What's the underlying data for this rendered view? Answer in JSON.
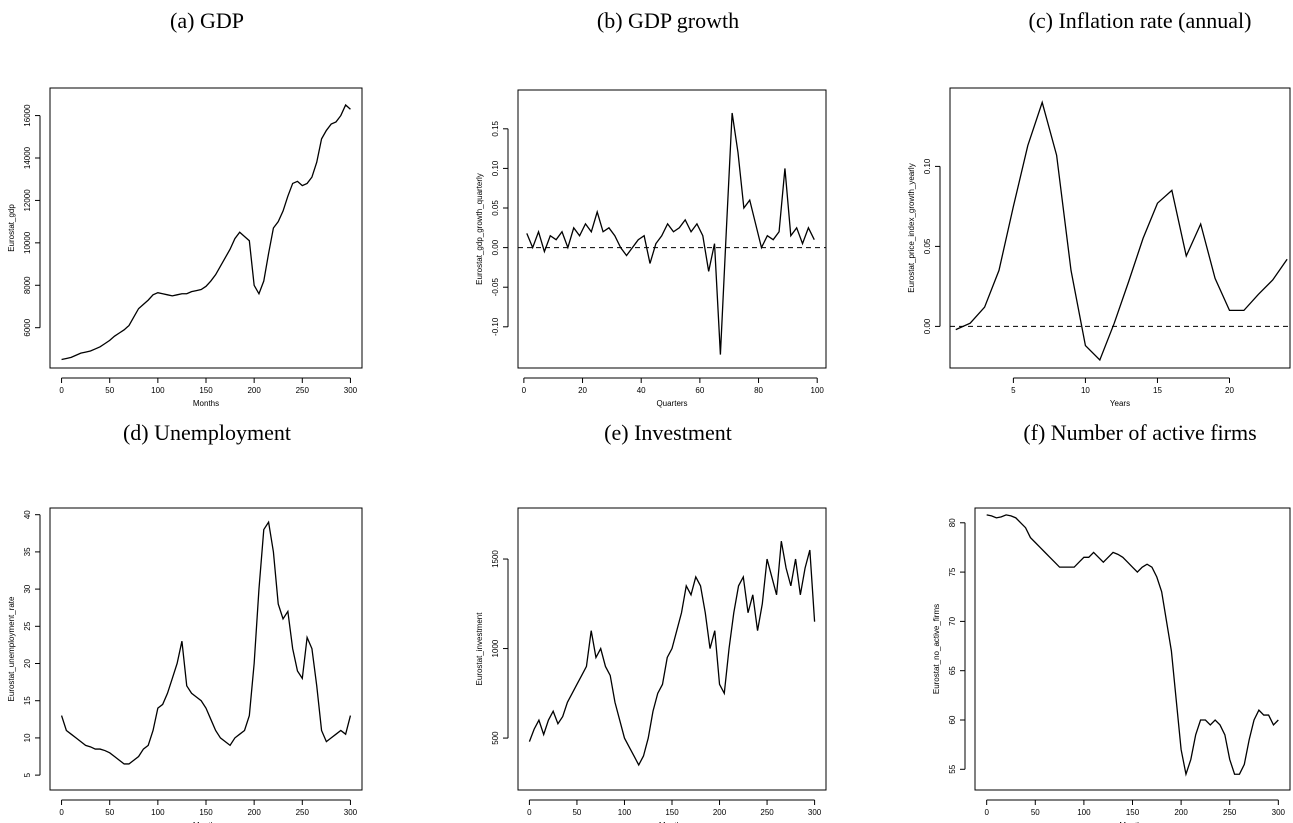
{
  "chart_data": [
    {
      "type": "line",
      "title": "(a) GDP",
      "xlabel": "Months",
      "ylabel": "Eurostat_gdp",
      "color": "#000000",
      "x": [
        0,
        5,
        10,
        15,
        20,
        25,
        30,
        35,
        40,
        45,
        50,
        55,
        60,
        65,
        70,
        75,
        80,
        85,
        90,
        95,
        100,
        105,
        110,
        115,
        120,
        125,
        130,
        135,
        140,
        145,
        150,
        155,
        160,
        165,
        170,
        175,
        180,
        185,
        190,
        195,
        200,
        205,
        210,
        215,
        220,
        225,
        230,
        235,
        240,
        245,
        250,
        255,
        260,
        265,
        270,
        275,
        280,
        285,
        290,
        295,
        300
      ],
      "values": [
        4500,
        4550,
        4600,
        4700,
        4800,
        4850,
        4900,
        5000,
        5100,
        5250,
        5400,
        5600,
        5750,
        5900,
        6100,
        6500,
        6900,
        7100,
        7300,
        7550,
        7650,
        7600,
        7550,
        7500,
        7550,
        7600,
        7600,
        7700,
        7750,
        7800,
        7950,
        8200,
        8500,
        8900,
        9300,
        9700,
        10200,
        10500,
        10300,
        10100,
        8000,
        7600,
        8200,
        9500,
        10700,
        11000,
        11500,
        12200,
        12800,
        12900,
        12700,
        12800,
        13100,
        13800,
        14900,
        15300,
        15600,
        15700,
        16000,
        16500,
        16300
      ],
      "xlim": [
        -12,
        312
      ],
      "ylim": [
        4100,
        17300
      ],
      "xticks": [
        0,
        50,
        100,
        150,
        200,
        250,
        300
      ],
      "yticks": [
        6000,
        8000,
        10000,
        12000,
        14000,
        16000
      ]
    },
    {
      "type": "line",
      "title": "(b) GDP growth",
      "xlabel": "Quarters",
      "ylabel": "Eurostat_gdp_growth_quarterly",
      "color": "#000000",
      "hline": 0,
      "x": [
        1,
        3,
        5,
        7,
        9,
        11,
        13,
        15,
        17,
        19,
        21,
        23,
        25,
        27,
        29,
        31,
        33,
        35,
        37,
        39,
        41,
        43,
        45,
        47,
        49,
        51,
        53,
        55,
        57,
        59,
        61,
        63,
        65,
        67,
        69,
        71,
        73,
        75,
        77,
        79,
        81,
        83,
        85,
        87,
        89,
        91,
        93,
        95,
        97,
        99
      ],
      "values": [
        0.018,
        0.0,
        0.02,
        -0.005,
        0.015,
        0.01,
        0.02,
        0.0,
        0.025,
        0.015,
        0.03,
        0.02,
        0.045,
        0.02,
        0.025,
        0.015,
        0.0,
        -0.01,
        0.0,
        0.01,
        0.015,
        -0.02,
        0.005,
        0.015,
        0.03,
        0.02,
        0.025,
        0.035,
        0.02,
        0.03,
        0.015,
        -0.03,
        0.005,
        -0.135,
        0.02,
        0.17,
        0.12,
        0.05,
        0.06,
        0.03,
        0.0,
        0.015,
        0.01,
        0.02,
        0.1,
        0.015,
        0.025,
        0.005,
        0.025,
        0.01
      ],
      "xlim": [
        -2,
        103
      ],
      "ylim": [
        -0.152,
        0.199
      ],
      "xticks": [
        0,
        20,
        40,
        60,
        80,
        100
      ],
      "yticks": [
        {
          "value": -0.1,
          "label": "-0.10"
        },
        -0.05,
        {
          "value": 0,
          "label": "0.00"
        },
        0.05,
        {
          "value": 0.1,
          "label": "0.10"
        },
        0.15
      ]
    },
    {
      "type": "line",
      "title": "(c) Inflation rate (annual)",
      "xlabel": "Years",
      "ylabel": "Eurostat_price_index_growth_yearly",
      "color": "#000000",
      "hline": 0,
      "x": [
        1,
        2,
        3,
        4,
        5,
        6,
        7,
        8,
        9,
        10,
        11,
        12,
        13,
        14,
        15,
        16,
        17,
        18,
        19,
        20,
        21,
        22,
        23,
        24
      ],
      "values": [
        -0.002,
        0.002,
        0.012,
        0.035,
        0.075,
        0.113,
        0.14,
        0.107,
        0.035,
        -0.012,
        -0.021,
        0.002,
        0.028,
        0.055,
        0.077,
        0.085,
        0.044,
        0.064,
        0.03,
        0.01,
        0.01,
        0.02,
        0.029,
        0.042
      ],
      "xlim": [
        0.6,
        24.2
      ],
      "ylim": [
        -0.026,
        0.149
      ],
      "xticks": [
        5,
        10,
        15,
        20
      ],
      "yticks": [
        {
          "value": 0,
          "label": "0.00"
        },
        0.05,
        {
          "value": 0.1,
          "label": "0.10"
        }
      ]
    },
    {
      "type": "line",
      "title": "(d) Unemployment",
      "xlabel": "Months",
      "ylabel": "Eurostat_unemployment_rate",
      "color": "#000000",
      "x": [
        0,
        5,
        10,
        15,
        20,
        25,
        30,
        35,
        40,
        45,
        50,
        55,
        60,
        65,
        70,
        75,
        80,
        85,
        90,
        95,
        100,
        105,
        110,
        115,
        120,
        125,
        130,
        135,
        140,
        145,
        150,
        155,
        160,
        165,
        170,
        175,
        180,
        185,
        190,
        195,
        200,
        205,
        210,
        215,
        220,
        225,
        230,
        235,
        240,
        245,
        250,
        255,
        260,
        265,
        270,
        275,
        280,
        285,
        290,
        295,
        300
      ],
      "values": [
        13,
        11,
        10.5,
        10,
        9.5,
        9,
        8.8,
        8.5,
        8.5,
        8.3,
        8,
        7.5,
        7,
        6.5,
        6.5,
        7,
        7.5,
        8.5,
        9,
        11,
        14,
        14.5,
        16,
        18,
        20,
        23,
        17,
        16,
        15.5,
        15,
        14,
        12.5,
        11,
        10,
        9.5,
        9,
        10,
        10.5,
        11,
        13,
        20,
        30,
        38,
        39,
        35,
        28,
        26,
        27,
        22,
        19,
        18,
        23.5,
        22,
        17,
        11,
        9.5,
        10,
        10.5,
        11,
        10.5,
        13
      ],
      "xlim": [
        -12,
        312
      ],
      "ylim": [
        3,
        40.9
      ],
      "xticks": [
        0,
        50,
        100,
        150,
        200,
        250,
        300
      ],
      "yticks": [
        5,
        10,
        15,
        20,
        25,
        30,
        35,
        40
      ]
    },
    {
      "type": "line",
      "title": "(e) Investment",
      "xlabel": "Months",
      "ylabel": "Eurostat_investment",
      "color": "#000000",
      "x": [
        0,
        5,
        10,
        15,
        20,
        25,
        30,
        35,
        40,
        45,
        50,
        55,
        60,
        65,
        70,
        75,
        80,
        85,
        90,
        95,
        100,
        105,
        110,
        115,
        120,
        125,
        130,
        135,
        140,
        145,
        150,
        155,
        160,
        165,
        170,
        175,
        180,
        185,
        190,
        195,
        200,
        205,
        210,
        215,
        220,
        225,
        230,
        235,
        240,
        245,
        250,
        255,
        260,
        265,
        270,
        275,
        280,
        285,
        290,
        295,
        300
      ],
      "values": [
        480,
        550,
        600,
        520,
        600,
        650,
        580,
        620,
        700,
        750,
        800,
        850,
        900,
        1100,
        950,
        1000,
        900,
        850,
        700,
        600,
        500,
        450,
        400,
        350,
        400,
        500,
        650,
        750,
        800,
        950,
        1000,
        1100,
        1200,
        1350,
        1300,
        1400,
        1350,
        1200,
        1000,
        1100,
        800,
        750,
        1000,
        1200,
        1350,
        1400,
        1200,
        1300,
        1100,
        1250,
        1500,
        1400,
        1300,
        1600,
        1450,
        1350,
        1500,
        1300,
        1450,
        1550,
        1150
      ],
      "xlim": [
        -12,
        312
      ],
      "ylim": [
        210,
        1785
      ],
      "xticks": [
        0,
        50,
        100,
        150,
        200,
        250,
        300
      ],
      "yticks": [
        500,
        1000,
        1500
      ]
    },
    {
      "type": "line",
      "title": "(f) Number of active firms",
      "xlabel": "Months",
      "ylabel": "Eurostat_no_active_firms",
      "color": "#000000",
      "x": [
        0,
        5,
        10,
        15,
        20,
        25,
        30,
        35,
        40,
        45,
        50,
        55,
        60,
        65,
        70,
        75,
        80,
        85,
        90,
        95,
        100,
        105,
        110,
        115,
        120,
        125,
        130,
        135,
        140,
        145,
        150,
        155,
        160,
        165,
        170,
        175,
        180,
        185,
        190,
        195,
        200,
        205,
        210,
        215,
        220,
        225,
        230,
        235,
        240,
        245,
        250,
        255,
        260,
        265,
        270,
        275,
        280,
        285,
        290,
        295,
        300
      ],
      "values": [
        80.8,
        80.7,
        80.5,
        80.6,
        80.8,
        80.7,
        80.5,
        80,
        79.5,
        78.5,
        78,
        77.5,
        77,
        76.5,
        76,
        75.5,
        75.5,
        75.5,
        75.5,
        76,
        76.5,
        76.5,
        77,
        76.5,
        76,
        76.5,
        77,
        76.8,
        76.5,
        76,
        75.5,
        75,
        75.5,
        75.8,
        75.5,
        74.5,
        73,
        70,
        67,
        62,
        57,
        54.5,
        56,
        58.5,
        60,
        60,
        59.5,
        60,
        59.5,
        58.5,
        56,
        54.5,
        54.5,
        55.5,
        58,
        60,
        61,
        60.5,
        60.5,
        59.5,
        60
      ],
      "xlim": [
        -12,
        312
      ],
      "ylim": [
        52.9,
        81.5
      ],
      "xticks": [
        0,
        50,
        100,
        150,
        200,
        250,
        300
      ],
      "yticks": [
        55,
        60,
        65,
        70,
        75,
        80
      ]
    }
  ]
}
